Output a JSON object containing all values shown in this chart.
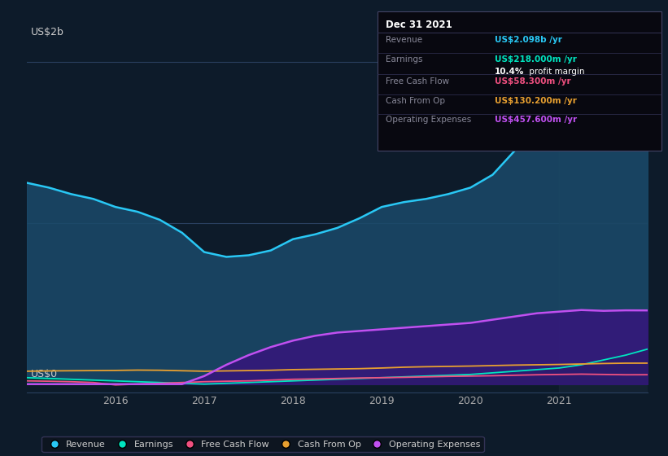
{
  "bg_color": "#0d1b2a",
  "plot_bg_color": "#0d1b2a",
  "ylabel_text": "US$2b",
  "ylabel_bottom": "US$0",
  "x_years": [
    2015.0,
    2015.25,
    2015.5,
    2015.75,
    2016.0,
    2016.25,
    2016.5,
    2016.75,
    2017.0,
    2017.25,
    2017.5,
    2017.75,
    2018.0,
    2018.25,
    2018.5,
    2018.75,
    2019.0,
    2019.25,
    2019.5,
    2019.75,
    2020.0,
    2020.25,
    2020.5,
    2020.75,
    2021.0,
    2021.25,
    2021.5,
    2021.75,
    2022.0
  ],
  "revenue": [
    1.25,
    1.22,
    1.18,
    1.15,
    1.1,
    1.07,
    1.02,
    0.94,
    0.82,
    0.79,
    0.8,
    0.83,
    0.9,
    0.93,
    0.97,
    1.03,
    1.1,
    1.13,
    1.15,
    1.18,
    1.22,
    1.3,
    1.45,
    1.62,
    1.75,
    1.88,
    2.0,
    2.08,
    2.098
  ],
  "earnings": [
    0.04,
    0.035,
    0.03,
    0.025,
    0.02,
    0.015,
    0.01,
    0.005,
    0.0,
    0.005,
    0.01,
    0.015,
    0.02,
    0.025,
    0.03,
    0.035,
    0.04,
    0.045,
    0.05,
    0.055,
    0.06,
    0.07,
    0.08,
    0.09,
    0.1,
    0.12,
    0.15,
    0.18,
    0.218
  ],
  "free_cash_flow": [
    0.02,
    0.018,
    0.015,
    0.01,
    -0.005,
    0.0,
    0.005,
    0.01,
    0.015,
    0.018,
    0.02,
    0.025,
    0.03,
    0.032,
    0.035,
    0.038,
    0.04,
    0.042,
    0.045,
    0.048,
    0.05,
    0.052,
    0.055,
    0.058,
    0.06,
    0.062,
    0.06,
    0.058,
    0.0583
  ],
  "cash_from_op": [
    0.08,
    0.082,
    0.083,
    0.084,
    0.085,
    0.087,
    0.086,
    0.083,
    0.08,
    0.082,
    0.084,
    0.086,
    0.09,
    0.092,
    0.094,
    0.096,
    0.1,
    0.105,
    0.108,
    0.11,
    0.112,
    0.115,
    0.118,
    0.12,
    0.122,
    0.125,
    0.128,
    0.13,
    0.1302
  ],
  "operating_expenses": [
    0.0,
    0.0,
    0.0,
    0.0,
    0.0,
    0.0,
    0.0,
    0.0,
    0.05,
    0.12,
    0.18,
    0.23,
    0.27,
    0.3,
    0.32,
    0.33,
    0.34,
    0.35,
    0.36,
    0.37,
    0.38,
    0.4,
    0.42,
    0.44,
    0.45,
    0.46,
    0.455,
    0.458,
    0.4576
  ],
  "revenue_color": "#29c8f5",
  "earnings_color": "#00e5c0",
  "fcf_color": "#f05080",
  "cashop_color": "#e8a030",
  "opex_color": "#c050f0",
  "legend_items": [
    {
      "label": "Revenue",
      "color": "#29c8f5"
    },
    {
      "label": "Earnings",
      "color": "#00e5c0"
    },
    {
      "label": "Free Cash Flow",
      "color": "#f05080"
    },
    {
      "label": "Cash From Op",
      "color": "#e8a030"
    },
    {
      "label": "Operating Expenses",
      "color": "#c050f0"
    }
  ],
  "infobox_title": "Dec 31 2021",
  "infobox_rows": [
    {
      "label": "Revenue",
      "value": "US$2.098b /yr",
      "color": "#29c8f5",
      "margin": null
    },
    {
      "label": "Earnings",
      "value": "US$218.000m /yr",
      "color": "#00e5c0",
      "margin": "10.4% profit margin"
    },
    {
      "label": "Free Cash Flow",
      "value": "US$58.300m /yr",
      "color": "#f05080",
      "margin": null
    },
    {
      "label": "Cash From Op",
      "value": "US$130.200m /yr",
      "color": "#e8a030",
      "margin": null
    },
    {
      "label": "Operating Expenses",
      "value": "US$457.600m /yr",
      "color": "#c050f0",
      "margin": null
    }
  ]
}
